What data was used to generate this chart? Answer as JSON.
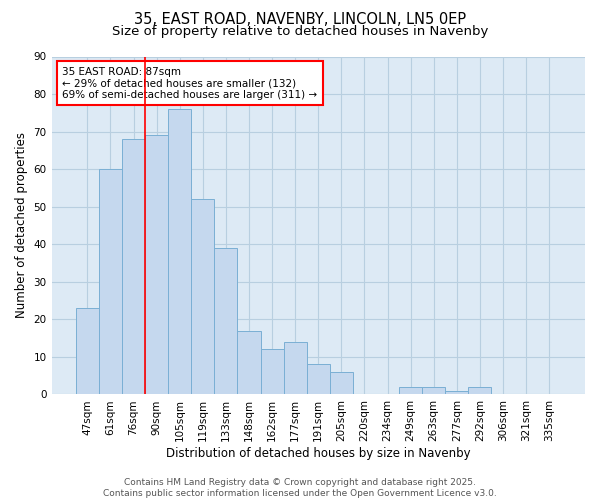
{
  "title1": "35, EAST ROAD, NAVENBY, LINCOLN, LN5 0EP",
  "title2": "Size of property relative to detached houses in Navenby",
  "xlabel": "Distribution of detached houses by size in Navenby",
  "ylabel": "Number of detached properties",
  "categories": [
    "47sqm",
    "61sqm",
    "76sqm",
    "90sqm",
    "105sqm",
    "119sqm",
    "133sqm",
    "148sqm",
    "162sqm",
    "177sqm",
    "191sqm",
    "205sqm",
    "220sqm",
    "234sqm",
    "249sqm",
    "263sqm",
    "277sqm",
    "292sqm",
    "306sqm",
    "321sqm",
    "335sqm"
  ],
  "values": [
    23,
    60,
    68,
    69,
    76,
    52,
    39,
    17,
    12,
    14,
    8,
    6,
    0,
    0,
    2,
    2,
    1,
    2,
    0,
    0,
    0
  ],
  "bar_color": "#c5d8ee",
  "bar_edge_color": "#7aafd4",
  "red_line_x": 2.5,
  "annotation_text": "35 EAST ROAD: 87sqm\n← 29% of detached houses are smaller (132)\n69% of semi-detached houses are larger (311) →",
  "annotation_box_color": "white",
  "annotation_box_edge_color": "red",
  "ylim": [
    0,
    90
  ],
  "yticks": [
    0,
    10,
    20,
    30,
    40,
    50,
    60,
    70,
    80,
    90
  ],
  "footnote": "Contains HM Land Registry data © Crown copyright and database right 2025.\nContains public sector information licensed under the Open Government Licence v3.0.",
  "grid_color": "#b8cfe0",
  "bg_color": "#ddeaf5",
  "title_fontsize": 10.5,
  "subtitle_fontsize": 9.5,
  "axis_label_fontsize": 8.5,
  "tick_fontsize": 7.5,
  "annotation_fontsize": 7.5,
  "footnote_fontsize": 6.5
}
